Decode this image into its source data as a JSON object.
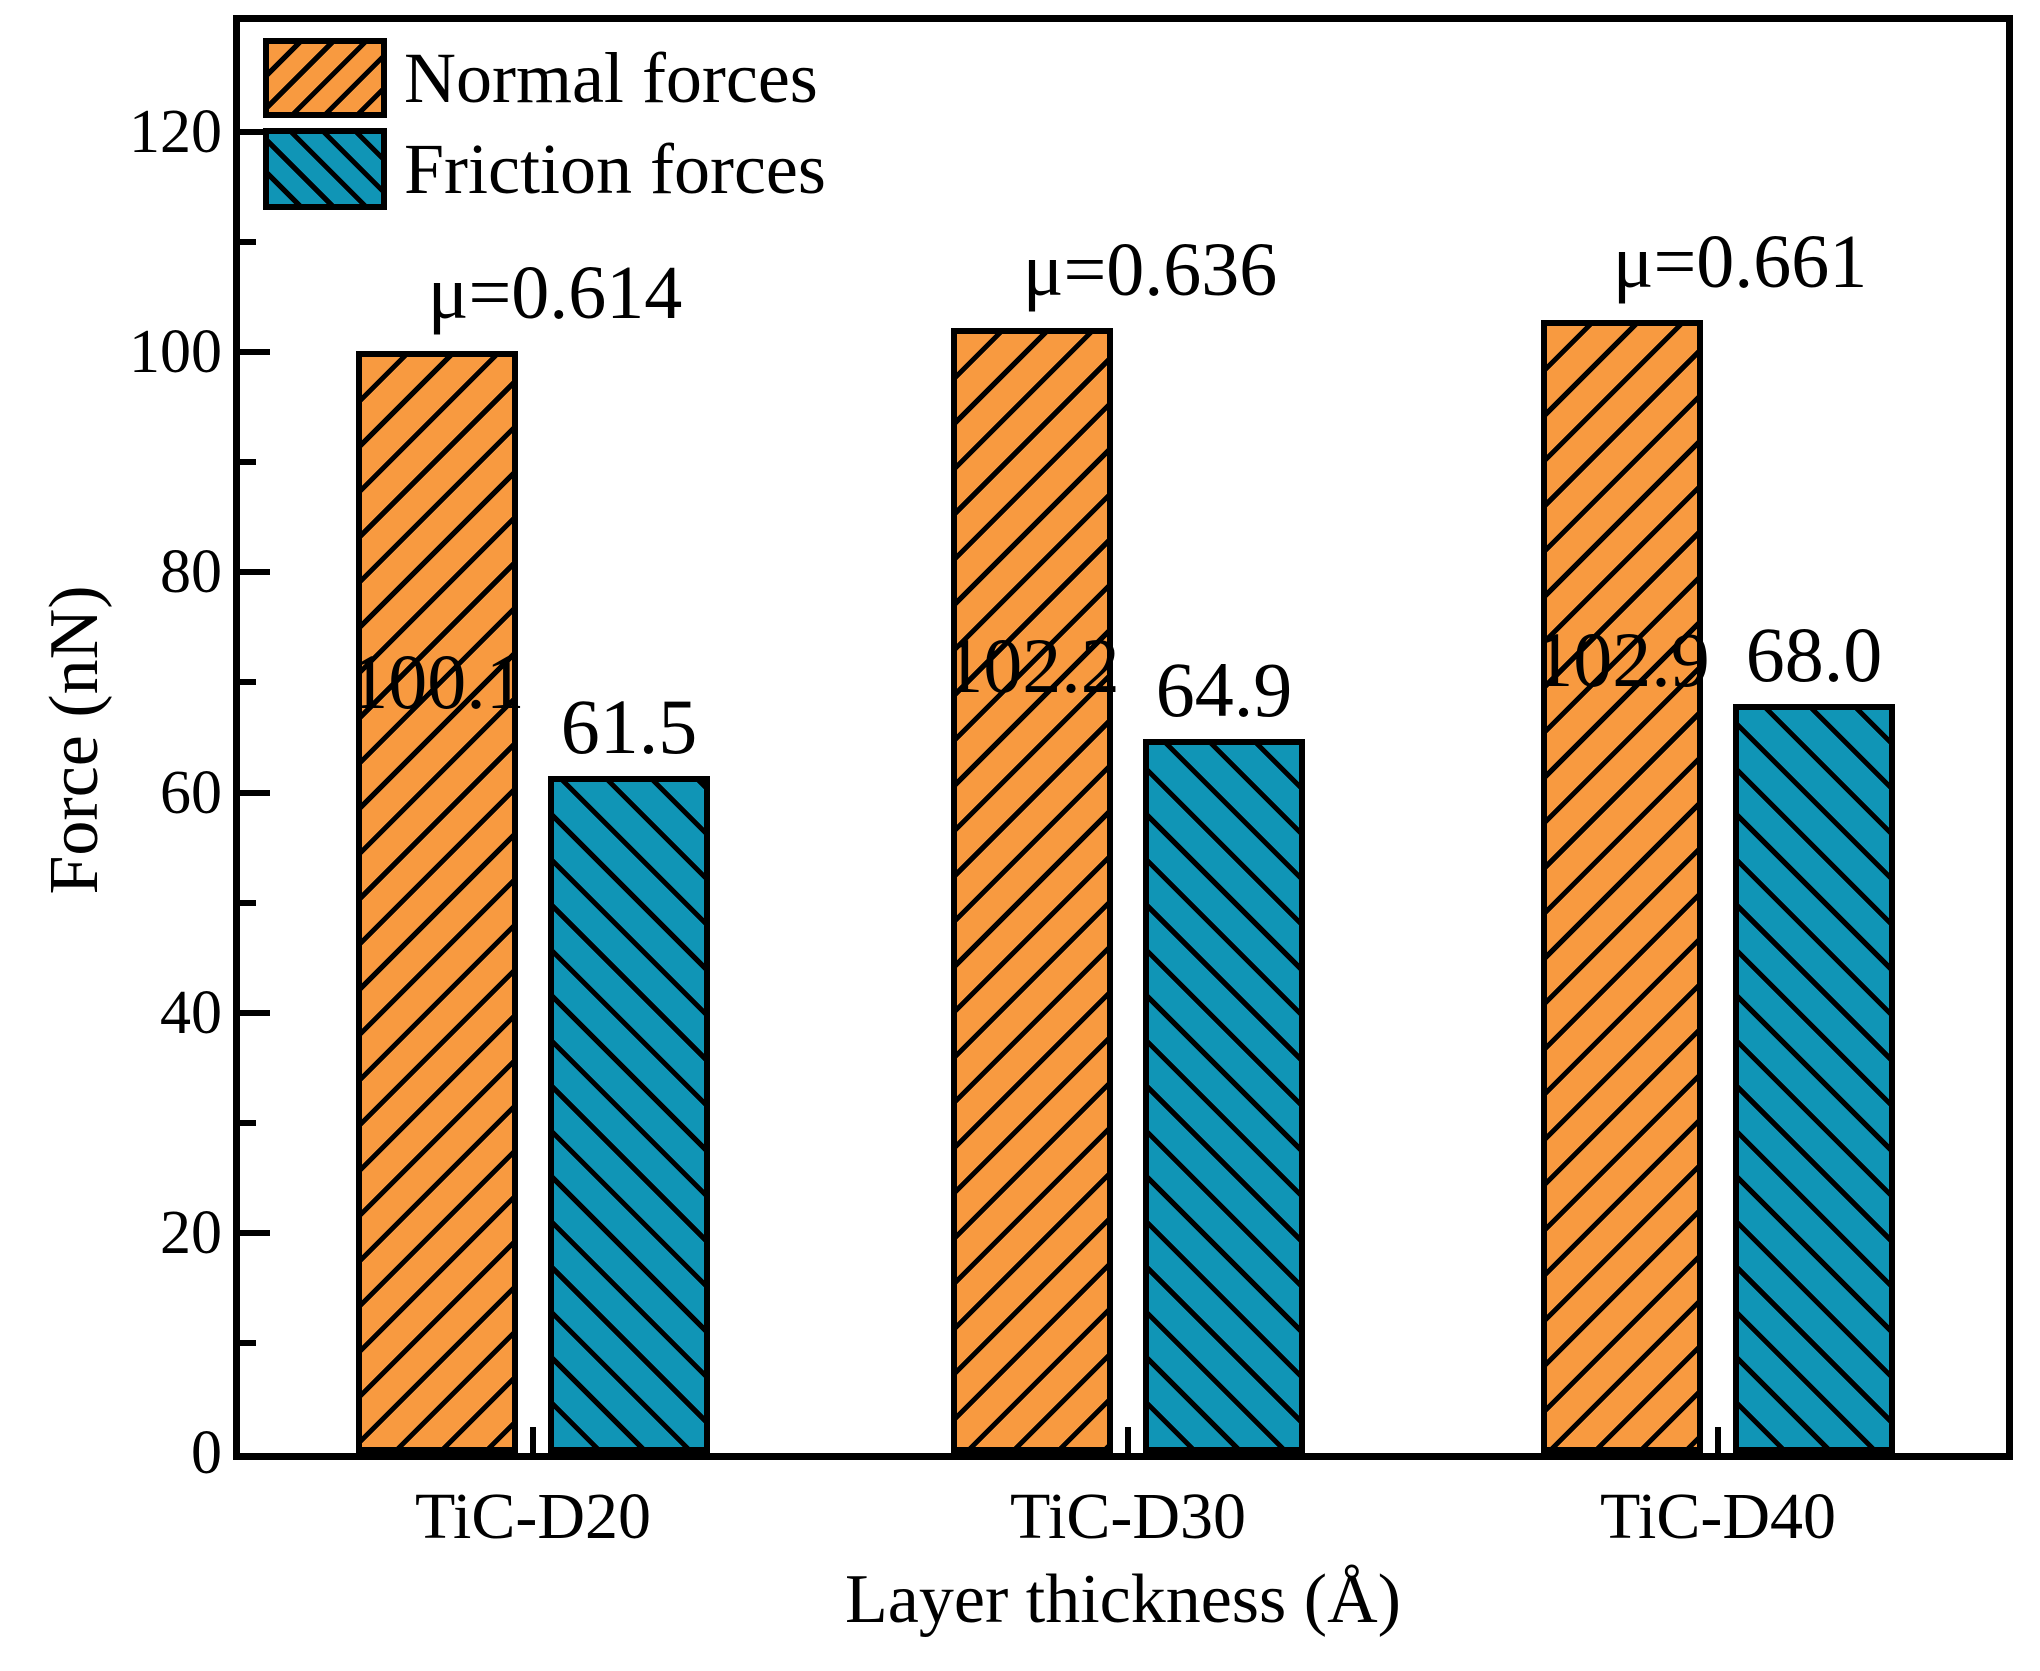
{
  "chart_data": {
    "type": "bar",
    "title": "",
    "xlabel": "Layer thickness (Å)",
    "ylabel": "Force (nN)",
    "categories": [
      "TiC-D20",
      "TiC-D30",
      "TiC-D40"
    ],
    "series": [
      {
        "name": "Normal forces",
        "color": "#F89A40",
        "hatch": "/",
        "values": [
          100.1,
          102.2,
          102.9
        ],
        "labels": [
          "100.1",
          "102.2",
          "102.9"
        ]
      },
      {
        "name": "Friction forces",
        "color": "#1095B6",
        "hatch": "\\",
        "values": [
          61.5,
          64.9,
          68.0
        ],
        "labels": [
          "61.5",
          "64.9",
          "68.0"
        ]
      }
    ],
    "annotations": {
      "mu_labels": [
        "μ=0.614",
        "μ=0.636",
        "μ=0.661"
      ],
      "mu_values": [
        0.614,
        0.636,
        0.661
      ]
    },
    "ylim": [
      0,
      130
    ],
    "yticks": [
      0,
      20,
      40,
      60,
      80,
      100,
      120
    ],
    "minor_tick_step": 10,
    "grid": false,
    "legend_position": "top-left",
    "axis_color": "#000000",
    "background_color": "#ffffff"
  }
}
